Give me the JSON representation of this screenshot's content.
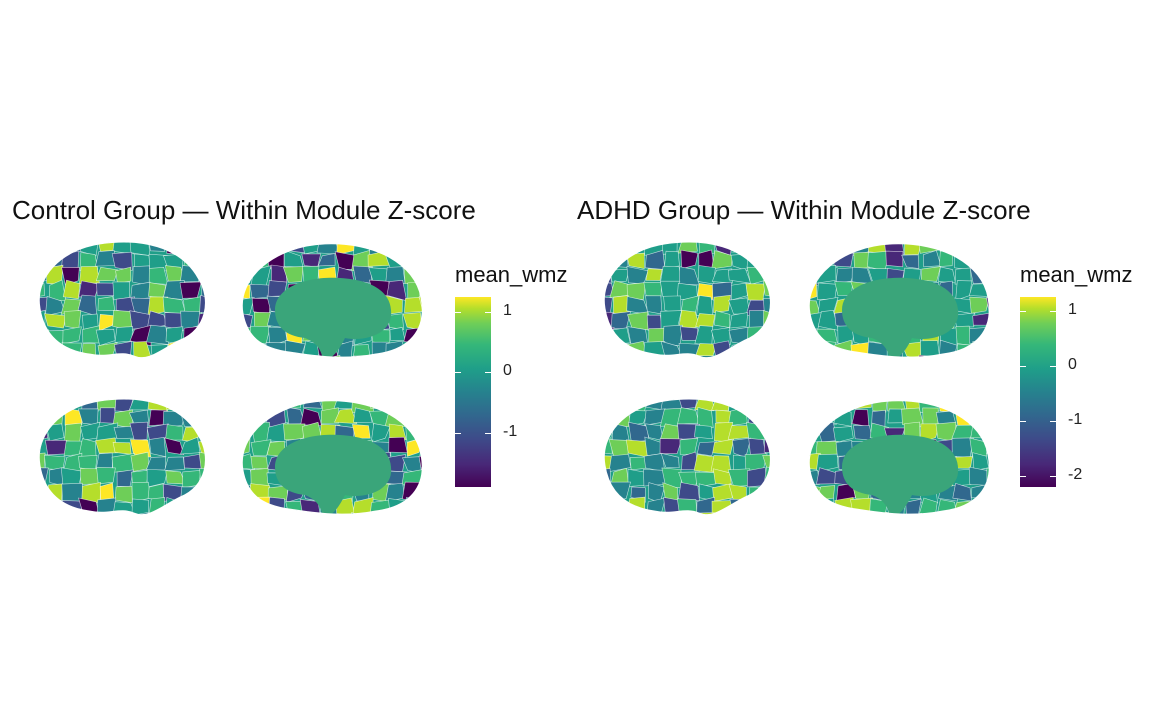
{
  "panels": [
    {
      "title": "Control Group — Within Module Z-score",
      "legend": {
        "title": "mean_wmz",
        "ticks": [
          {
            "label": "1",
            "value": 1
          },
          {
            "label": "0",
            "value": 0
          },
          {
            "label": "-1",
            "value": -1
          }
        ],
        "range": [
          -1.9,
          1.25
        ]
      }
    },
    {
      "title": "ADHD Group — Within Module Z-score",
      "legend": {
        "title": "mean_wmz",
        "ticks": [
          {
            "label": "1",
            "value": 1
          },
          {
            "label": "0",
            "value": 0
          },
          {
            "label": "-1",
            "value": -1
          },
          {
            "label": "-2",
            "value": -2
          }
        ],
        "range": [
          -2.2,
          1.25
        ]
      }
    }
  ],
  "colors": {
    "viridis": [
      "#440154",
      "#482878",
      "#3e4a89",
      "#31688e",
      "#26828e",
      "#1f9e89",
      "#35b779",
      "#6ece58",
      "#b5de2b",
      "#fde725"
    ],
    "midline": "#3aa57a"
  }
}
